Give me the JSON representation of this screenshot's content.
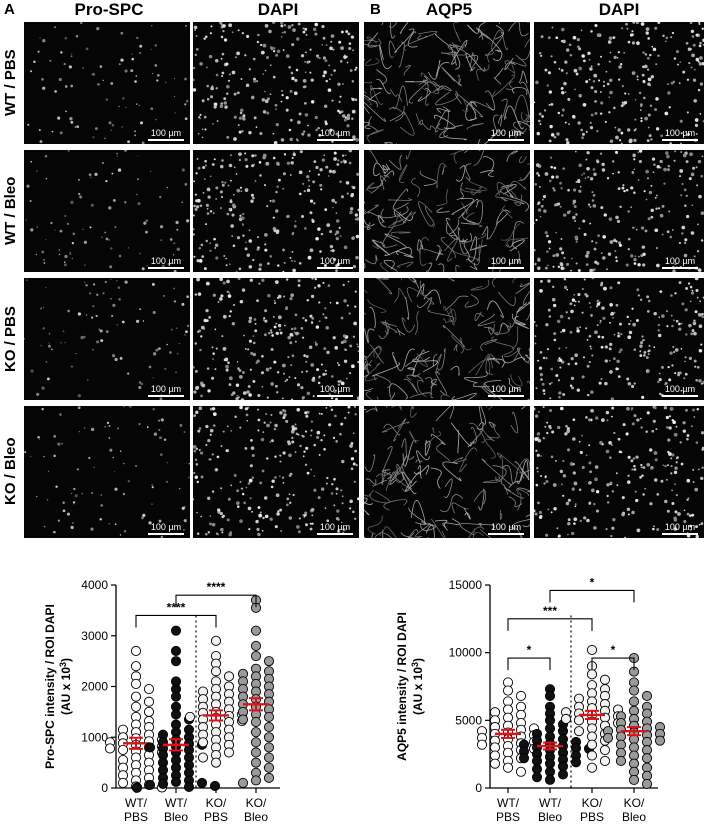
{
  "panels": [
    {
      "letter": "A",
      "columns": [
        "Pro-SPC",
        "DAPI"
      ]
    },
    {
      "letter": "B",
      "columns": [
        "AQP5",
        "DAPI"
      ]
    }
  ],
  "rows": [
    "WT / PBS",
    "WT / Bleo",
    "KO / PBS",
    "KO / Bleo"
  ],
  "scale_bar": "100 µm",
  "image_styles": {
    "Pro-SPC": {
      "density": 90,
      "kind": "speck"
    },
    "DAPI": {
      "density": 260,
      "kind": "nuclei"
    },
    "AQP5": {
      "density": 110,
      "kind": "mesh"
    }
  },
  "chart_data": [
    {
      "type": "scatter",
      "panel": "A",
      "ylabel": "Pro-SPC intensity / ROI DAPI",
      "ylabel2": "(AU x 10",
      "ylabel_sup": "3",
      "ylabel_end": ")",
      "ylim": [
        0,
        4000
      ],
      "yticks": [
        "0",
        "1000",
        "2000",
        "3000",
        "4000"
      ],
      "ytick_values": [
        0,
        1000,
        2000,
        3000,
        4000
      ],
      "categories": [
        [
          "WT/",
          "PBS"
        ],
        [
          "WT/",
          "Bleo"
        ],
        [
          "KO/",
          "PBS"
        ],
        [
          "KO/",
          "Bleo"
        ]
      ],
      "fills": [
        "#ffffff",
        "#111111",
        "#f2f2f2",
        "#9a9a9a"
      ],
      "means": [
        880,
        850,
        1430,
        1650
      ],
      "sem": [
        110,
        110,
        100,
        120
      ],
      "dotted_separator": true,
      "brackets": [
        {
          "from": 0,
          "to": 2,
          "label": "****",
          "level": 3400
        },
        {
          "from": 1,
          "to": 3,
          "label": "****",
          "level": 3800
        }
      ],
      "series": [
        {
          "values": [
            2700,
            2400,
            2200,
            2050,
            1950,
            1800,
            1700,
            1600,
            1500,
            1400,
            1320,
            1250,
            1200,
            1150,
            1100,
            1050,
            1000,
            980,
            950,
            920,
            900,
            880,
            850,
            820,
            800,
            780,
            750,
            720,
            700,
            650,
            600,
            550,
            500,
            450,
            400,
            350,
            300,
            250,
            200,
            150,
            100,
            60,
            30,
            10
          ]
        },
        {
          "values": [
            3100,
            2700,
            2500,
            2100,
            1950,
            1800,
            1600,
            1450,
            1350,
            1250,
            1150,
            1100,
            1050,
            1000,
            950,
            900,
            870,
            850,
            820,
            800,
            780,
            750,
            700,
            650,
            600,
            550,
            500,
            450,
            400,
            350,
            300,
            250,
            200,
            150,
            120,
            100,
            80,
            60,
            40,
            20,
            10,
            5
          ]
        },
        {
          "values": [
            2900,
            2600,
            2450,
            2300,
            2200,
            2100,
            2000,
            1950,
            1900,
            1850,
            1800,
            1750,
            1700,
            1650,
            1600,
            1550,
            1500,
            1480,
            1450,
            1420,
            1400,
            1380,
            1350,
            1320,
            1300,
            1250,
            1200,
            1150,
            1100,
            1050,
            1000,
            950,
            900,
            850,
            800,
            700,
            650,
            600,
            500
          ]
        },
        {
          "values": [
            3700,
            3550,
            3100,
            2800,
            2600,
            2500,
            2350,
            2300,
            2250,
            2200,
            2150,
            2100,
            2050,
            2000,
            1950,
            1900,
            1850,
            1800,
            1750,
            1700,
            1650,
            1600,
            1550,
            1500,
            1450,
            1400,
            1350,
            1300,
            1200,
            1100,
            1000,
            900,
            800,
            700,
            600,
            500,
            400,
            300,
            200,
            150,
            100
          ]
        }
      ]
    },
    {
      "type": "scatter",
      "panel": "B",
      "ylabel": "AQP5 intensity / ROI DAPI",
      "ylabel2": "(AU x 10",
      "ylabel_sup": "3",
      "ylabel_end": ")",
      "ylim": [
        0,
        15000
      ],
      "yticks": [
        "0",
        "5000",
        "10000",
        "15000"
      ],
      "ytick_values": [
        0,
        5000,
        10000,
        15000
      ],
      "categories": [
        [
          "WT/",
          "PBS"
        ],
        [
          "WT/",
          "Bleo"
        ],
        [
          "KO/",
          "PBS"
        ],
        [
          "KO/",
          "Bleo"
        ]
      ],
      "fills": [
        "#ffffff",
        "#111111",
        "#f2f2f2",
        "#9a9a9a"
      ],
      "means": [
        4000,
        3100,
        5400,
        4200
      ],
      "sem": [
        300,
        250,
        300,
        300
      ],
      "dotted_separator": true,
      "brackets": [
        {
          "from": 0,
          "to": 1,
          "label": "*",
          "level": 9600
        },
        {
          "from": 2,
          "to": 3,
          "label": "*",
          "level": 9600
        },
        {
          "from": 0,
          "to": 2,
          "label": "***",
          "level": 12500
        },
        {
          "from": 1,
          "to": 3,
          "label": "*",
          "level": 14600
        }
      ],
      "series": [
        {
          "values": [
            7800,
            7200,
            6800,
            6400,
            6000,
            5800,
            5600,
            5400,
            5200,
            5000,
            4800,
            4600,
            4500,
            4400,
            4300,
            4200,
            4100,
            4000,
            3900,
            3800,
            3700,
            3600,
            3500,
            3400,
            3300,
            3200,
            3100,
            3000,
            2900,
            2800,
            2600,
            2400,
            2200,
            2000,
            1800,
            1500,
            1200
          ]
        },
        {
          "values": [
            7300,
            6800,
            6000,
            5500,
            5000,
            4700,
            4400,
            4200,
            4000,
            3800,
            3600,
            3500,
            3400,
            3300,
            3200,
            3100,
            3000,
            2950,
            2900,
            2800,
            2700,
            2600,
            2500,
            2400,
            2300,
            2200,
            2100,
            2000,
            1900,
            1800,
            1600,
            1400,
            1200,
            1000,
            800,
            600
          ]
        },
        {
          "values": [
            10200,
            9000,
            8400,
            8000,
            7600,
            7300,
            7000,
            6800,
            6600,
            6400,
            6200,
            6000,
            5900,
            5800,
            5700,
            5600,
            5500,
            5400,
            5300,
            5200,
            5100,
            5000,
            4900,
            4800,
            4600,
            4400,
            4200,
            4000,
            3800,
            3500,
            3200,
            2800,
            2400,
            2000,
            1500
          ]
        },
        {
          "values": [
            9600,
            8600,
            7800,
            7200,
            6800,
            6400,
            6000,
            5700,
            5500,
            5300,
            5100,
            4900,
            4800,
            4600,
            4500,
            4400,
            4300,
            4200,
            4100,
            4000,
            3900,
            3800,
            3700,
            3600,
            3500,
            3400,
            3200,
            3000,
            2800,
            2600,
            2400,
            2200,
            2000,
            1800,
            1500,
            1200,
            900,
            600,
            300
          ]
        }
      ]
    }
  ]
}
